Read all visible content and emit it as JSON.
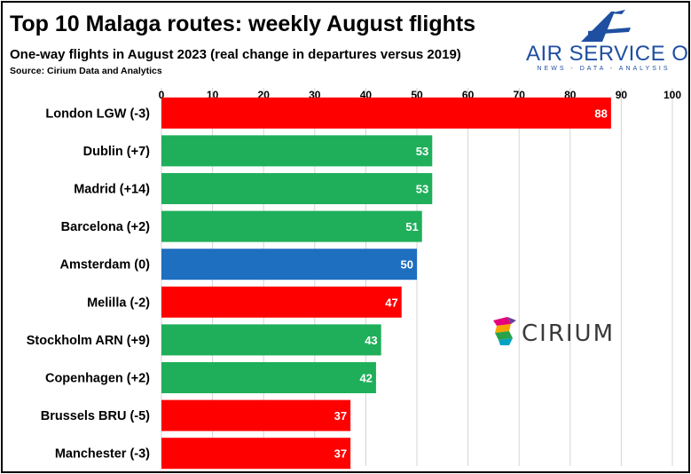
{
  "header": {
    "title": "Top 10 Malaga routes: weekly August flights",
    "subtitle": "One-way flights in August 2023 (real change in departures versus 2019)",
    "source": "Source: Cirium Data and Analytics"
  },
  "brand": {
    "name": "AIR SERVICE ONE",
    "tagline": "NEWS - DATA - ANALYSIS",
    "color": "#1F4FA0"
  },
  "partner_logo": {
    "name": "CIRIUM",
    "colors": [
      "#E6007E",
      "#F7A600",
      "#2AA24A",
      "#00A3C4",
      "#6A3F98"
    ]
  },
  "colors": {
    "decline": "#FF0000",
    "growth": "#1FAF5A",
    "flat": "#1F6FC0"
  },
  "chart_data": {
    "type": "bar",
    "orientation": "horizontal",
    "categories": [
      "London LGW (-3)",
      "Dublin (+7)",
      "Madrid (+14)",
      "Barcelona (+2)",
      "Amsterdam (0)",
      "Melilla (-2)",
      "Stockholm ARN (+9)",
      "Copenhagen (+2)",
      "Brussels BRU (-5)",
      "Manchester (-3)"
    ],
    "values": [
      88,
      53,
      53,
      51,
      50,
      47,
      43,
      42,
      37,
      37
    ],
    "bar_colors": [
      "#FF0000",
      "#1FAF5A",
      "#1FAF5A",
      "#1FAF5A",
      "#1F6FC0",
      "#FF0000",
      "#1FAF5A",
      "#1FAF5A",
      "#FF0000",
      "#FF0000"
    ],
    "data_labels": [
      "88",
      "53",
      "53",
      "51",
      "50",
      "47",
      "43",
      "42",
      "37",
      "37"
    ],
    "xlim": [
      0,
      100
    ],
    "xticks": [
      0,
      10,
      20,
      30,
      40,
      50,
      60,
      70,
      80,
      90,
      100
    ],
    "x_axis_position": "top",
    "grid": true,
    "legend": "none",
    "title": "Top 10 Malaga routes: weekly August flights",
    "xlabel": "",
    "ylabel": ""
  }
}
